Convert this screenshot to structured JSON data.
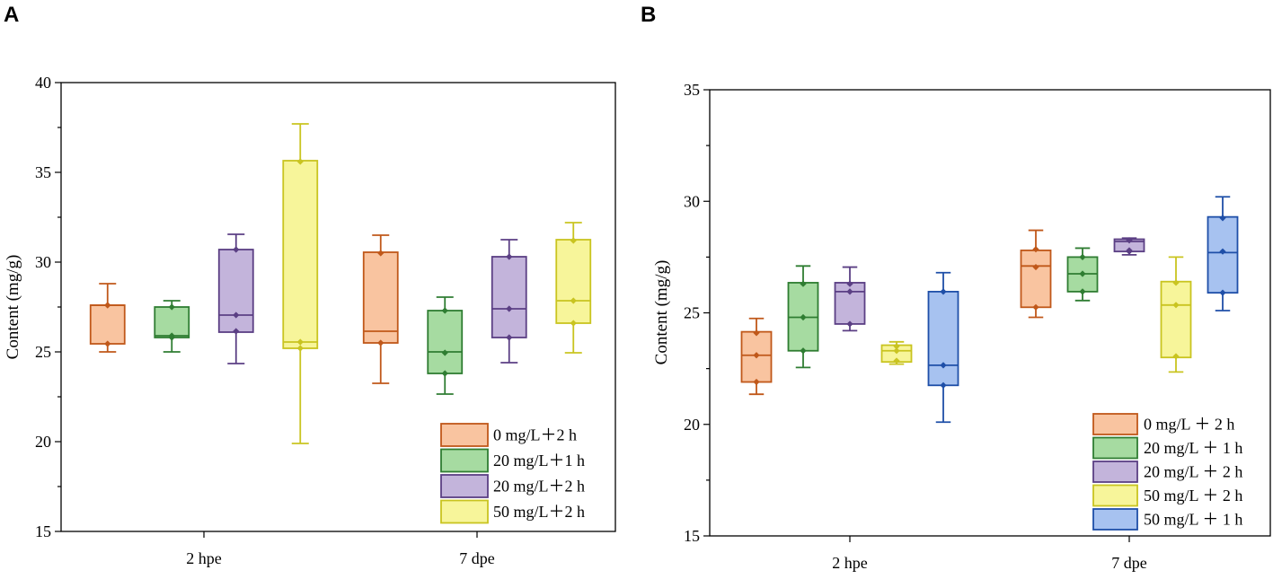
{
  "chart_data": [
    {
      "panel": "A",
      "type": "box",
      "title": "",
      "xlabel": "",
      "ylabel": "Content (mg/g)",
      "ylim": [
        15,
        40
      ],
      "yticks": [
        "15",
        "20",
        "25",
        "30",
        "35",
        "40"
      ],
      "categories": [
        "2 hpe",
        "7 dpe"
      ],
      "legend_position": "bottom-right",
      "series": [
        {
          "name": "0 mg/L＋2 h",
          "fill": "#f9c4a0",
          "stroke": "#c0581a",
          "boxes": [
            {
              "category": "2 hpe",
              "min": 25.0,
              "q1": 25.45,
              "median": 27.6,
              "q3": 27.6,
              "max": 28.8,
              "points": [
                27.6,
                27.6,
                25.45
              ]
            },
            {
              "category": "7 dpe",
              "min": 23.25,
              "q1": 25.5,
              "median": 26.15,
              "q3": 30.55,
              "max": 31.5,
              "points": [
                30.5,
                25.5
              ]
            }
          ]
        },
        {
          "name": "20 mg/L＋1 h",
          "fill": "#a6dba1",
          "stroke": "#2f7d32",
          "boxes": [
            {
              "category": "2 hpe",
              "min": 25.0,
              "q1": 25.8,
              "median": 25.9,
              "q3": 27.5,
              "max": 27.85,
              "points": [
                27.5,
                25.8,
                25.9
              ]
            },
            {
              "category": "7 dpe",
              "min": 22.65,
              "q1": 23.8,
              "median": 25.0,
              "q3": 27.3,
              "max": 28.05,
              "points": [
                27.3,
                24.95,
                23.8
              ]
            }
          ]
        },
        {
          "name": "20 mg/L＋2 h",
          "fill": "#c3b4db",
          "stroke": "#5b3f84",
          "boxes": [
            {
              "category": "2 hpe",
              "min": 24.35,
              "q1": 26.1,
              "median": 27.05,
              "q3": 30.7,
              "max": 31.55,
              "points": [
                30.7,
                27.05,
                26.15
              ]
            },
            {
              "category": "7 dpe",
              "min": 24.4,
              "q1": 25.8,
              "median": 27.4,
              "q3": 30.3,
              "max": 31.25,
              "points": [
                30.3,
                27.4,
                25.8
              ]
            }
          ]
        },
        {
          "name": "50 mg/L＋2 h",
          "fill": "#f7f59a",
          "stroke": "#c9c420",
          "boxes": [
            {
              "category": "2 hpe",
              "min": 19.9,
              "q1": 25.2,
              "median": 25.55,
              "q3": 35.65,
              "max": 37.7,
              "points": [
                35.6,
                25.55,
                25.2
              ]
            },
            {
              "category": "7 dpe",
              "min": 24.95,
              "q1": 26.6,
              "median": 27.85,
              "q3": 31.25,
              "max": 32.2,
              "points": [
                31.2,
                27.85,
                26.6
              ]
            }
          ]
        }
      ]
    },
    {
      "panel": "B",
      "type": "box",
      "title": "",
      "xlabel": "",
      "ylabel": "Content (mg/g)",
      "ylim": [
        15,
        35
      ],
      "yticks": [
        "15",
        "20",
        "25",
        "30",
        "35"
      ],
      "categories": [
        "2 hpe",
        "7 dpe"
      ],
      "legend_position": "bottom-right",
      "series": [
        {
          "name": "0 mg/L ＋ 2 h",
          "fill": "#f9c4a0",
          "stroke": "#c0581a",
          "boxes": [
            {
              "category": "2 hpe",
              "min": 21.35,
              "q1": 21.9,
              "median": 23.1,
              "q3": 24.15,
              "max": 24.75,
              "points": [
                24.1,
                23.1,
                21.9
              ]
            },
            {
              "category": "7 dpe",
              "min": 24.8,
              "q1": 25.25,
              "median": 27.1,
              "q3": 27.8,
              "max": 28.7,
              "points": [
                27.85,
                27.05,
                25.25
              ]
            }
          ]
        },
        {
          "name": "20 mg/L ＋ 1 h",
          "fill": "#a6dba1",
          "stroke": "#2f7d32",
          "boxes": [
            {
              "category": "2 hpe",
              "min": 22.55,
              "q1": 23.3,
              "median": 24.8,
              "q3": 26.35,
              "max": 27.1,
              "points": [
                26.3,
                24.8,
                23.3
              ]
            },
            {
              "category": "7 dpe",
              "min": 25.55,
              "q1": 25.95,
              "median": 26.75,
              "q3": 27.5,
              "max": 27.9,
              "points": [
                27.5,
                26.75,
                25.95
              ]
            }
          ]
        },
        {
          "name": "20 mg/L ＋ 2 h",
          "fill": "#c3b4db",
          "stroke": "#5b3f84",
          "boxes": [
            {
              "category": "2 hpe",
              "min": 24.2,
              "q1": 24.5,
              "median": 25.95,
              "q3": 26.35,
              "max": 27.05,
              "points": [
                26.3,
                25.95,
                24.5
              ]
            },
            {
              "category": "7 dpe",
              "min": 27.6,
              "q1": 27.75,
              "median": 28.2,
              "q3": 28.3,
              "max": 28.35,
              "points": [
                28.25,
                27.8,
                27.75
              ]
            }
          ]
        },
        {
          "name": "50 mg/L ＋ 2 h",
          "fill": "#f7f59a",
          "stroke": "#c9c420",
          "boxes": [
            {
              "category": "2 hpe",
              "min": 22.7,
              "q1": 22.8,
              "median": 23.3,
              "q3": 23.55,
              "max": 23.7,
              "points": [
                23.5,
                23.3,
                22.85
              ]
            },
            {
              "category": "7 dpe",
              "min": 22.35,
              "q1": 23.0,
              "median": 25.35,
              "q3": 26.4,
              "max": 27.5,
              "points": [
                26.35,
                25.35,
                23.05
              ]
            }
          ]
        },
        {
          "name": "50 mg/L ＋ 1 h",
          "fill": "#a7c2f0",
          "stroke": "#1f4fa8",
          "boxes": [
            {
              "category": "2 hpe",
              "min": 20.1,
              "q1": 21.75,
              "median": 22.65,
              "q3": 25.95,
              "max": 26.8,
              "points": [
                25.95,
                22.65,
                21.75
              ]
            },
            {
              "category": "7 dpe",
              "min": 25.1,
              "q1": 25.9,
              "median": 27.7,
              "q3": 29.3,
              "max": 30.2,
              "points": [
                29.25,
                27.75,
                25.9
              ]
            }
          ]
        }
      ]
    }
  ]
}
